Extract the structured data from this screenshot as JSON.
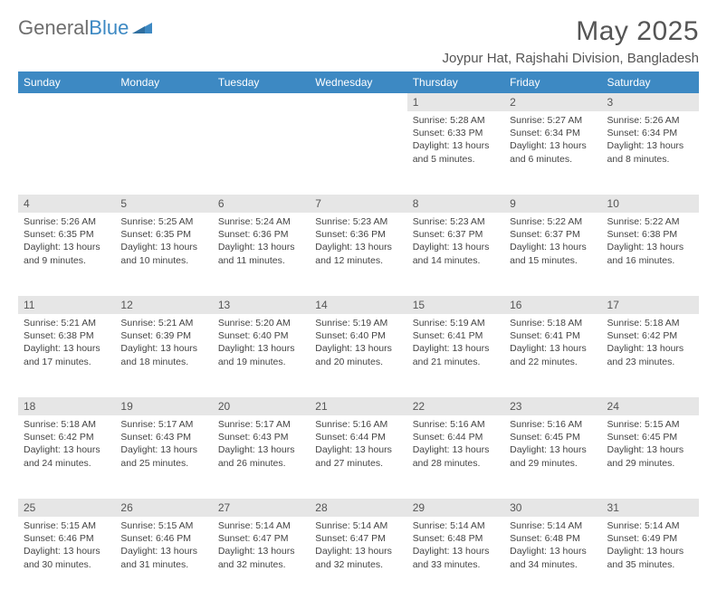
{
  "brand": {
    "part1": "General",
    "part2": "Blue"
  },
  "title": "May 2025",
  "location": "Joypur Hat, Rajshahi Division, Bangladesh",
  "colors": {
    "header_bg": "#3d89c3",
    "header_text": "#ffffff",
    "daynum_bg": "#e6e6e6",
    "text": "#444444",
    "background": "#ffffff"
  },
  "font_sizes": {
    "title": 30,
    "subtitle": 15,
    "weekday": 12,
    "daynum": 12,
    "body": 10.5
  },
  "weekdays": [
    "Sunday",
    "Monday",
    "Tuesday",
    "Wednesday",
    "Thursday",
    "Friday",
    "Saturday"
  ],
  "weeks": [
    [
      null,
      null,
      null,
      null,
      {
        "n": "1",
        "sunrise": "Sunrise: 5:28 AM",
        "sunset": "Sunset: 6:33 PM",
        "daylight": "Daylight: 13 hours and 5 minutes."
      },
      {
        "n": "2",
        "sunrise": "Sunrise: 5:27 AM",
        "sunset": "Sunset: 6:34 PM",
        "daylight": "Daylight: 13 hours and 6 minutes."
      },
      {
        "n": "3",
        "sunrise": "Sunrise: 5:26 AM",
        "sunset": "Sunset: 6:34 PM",
        "daylight": "Daylight: 13 hours and 8 minutes."
      }
    ],
    [
      {
        "n": "4",
        "sunrise": "Sunrise: 5:26 AM",
        "sunset": "Sunset: 6:35 PM",
        "daylight": "Daylight: 13 hours and 9 minutes."
      },
      {
        "n": "5",
        "sunrise": "Sunrise: 5:25 AM",
        "sunset": "Sunset: 6:35 PM",
        "daylight": "Daylight: 13 hours and 10 minutes."
      },
      {
        "n": "6",
        "sunrise": "Sunrise: 5:24 AM",
        "sunset": "Sunset: 6:36 PM",
        "daylight": "Daylight: 13 hours and 11 minutes."
      },
      {
        "n": "7",
        "sunrise": "Sunrise: 5:23 AM",
        "sunset": "Sunset: 6:36 PM",
        "daylight": "Daylight: 13 hours and 12 minutes."
      },
      {
        "n": "8",
        "sunrise": "Sunrise: 5:23 AM",
        "sunset": "Sunset: 6:37 PM",
        "daylight": "Daylight: 13 hours and 14 minutes."
      },
      {
        "n": "9",
        "sunrise": "Sunrise: 5:22 AM",
        "sunset": "Sunset: 6:37 PM",
        "daylight": "Daylight: 13 hours and 15 minutes."
      },
      {
        "n": "10",
        "sunrise": "Sunrise: 5:22 AM",
        "sunset": "Sunset: 6:38 PM",
        "daylight": "Daylight: 13 hours and 16 minutes."
      }
    ],
    [
      {
        "n": "11",
        "sunrise": "Sunrise: 5:21 AM",
        "sunset": "Sunset: 6:38 PM",
        "daylight": "Daylight: 13 hours and 17 minutes."
      },
      {
        "n": "12",
        "sunrise": "Sunrise: 5:21 AM",
        "sunset": "Sunset: 6:39 PM",
        "daylight": "Daylight: 13 hours and 18 minutes."
      },
      {
        "n": "13",
        "sunrise": "Sunrise: 5:20 AM",
        "sunset": "Sunset: 6:40 PM",
        "daylight": "Daylight: 13 hours and 19 minutes."
      },
      {
        "n": "14",
        "sunrise": "Sunrise: 5:19 AM",
        "sunset": "Sunset: 6:40 PM",
        "daylight": "Daylight: 13 hours and 20 minutes."
      },
      {
        "n": "15",
        "sunrise": "Sunrise: 5:19 AM",
        "sunset": "Sunset: 6:41 PM",
        "daylight": "Daylight: 13 hours and 21 minutes."
      },
      {
        "n": "16",
        "sunrise": "Sunrise: 5:18 AM",
        "sunset": "Sunset: 6:41 PM",
        "daylight": "Daylight: 13 hours and 22 minutes."
      },
      {
        "n": "17",
        "sunrise": "Sunrise: 5:18 AM",
        "sunset": "Sunset: 6:42 PM",
        "daylight": "Daylight: 13 hours and 23 minutes."
      }
    ],
    [
      {
        "n": "18",
        "sunrise": "Sunrise: 5:18 AM",
        "sunset": "Sunset: 6:42 PM",
        "daylight": "Daylight: 13 hours and 24 minutes."
      },
      {
        "n": "19",
        "sunrise": "Sunrise: 5:17 AM",
        "sunset": "Sunset: 6:43 PM",
        "daylight": "Daylight: 13 hours and 25 minutes."
      },
      {
        "n": "20",
        "sunrise": "Sunrise: 5:17 AM",
        "sunset": "Sunset: 6:43 PM",
        "daylight": "Daylight: 13 hours and 26 minutes."
      },
      {
        "n": "21",
        "sunrise": "Sunrise: 5:16 AM",
        "sunset": "Sunset: 6:44 PM",
        "daylight": "Daylight: 13 hours and 27 minutes."
      },
      {
        "n": "22",
        "sunrise": "Sunrise: 5:16 AM",
        "sunset": "Sunset: 6:44 PM",
        "daylight": "Daylight: 13 hours and 28 minutes."
      },
      {
        "n": "23",
        "sunrise": "Sunrise: 5:16 AM",
        "sunset": "Sunset: 6:45 PM",
        "daylight": "Daylight: 13 hours and 29 minutes."
      },
      {
        "n": "24",
        "sunrise": "Sunrise: 5:15 AM",
        "sunset": "Sunset: 6:45 PM",
        "daylight": "Daylight: 13 hours and 29 minutes."
      }
    ],
    [
      {
        "n": "25",
        "sunrise": "Sunrise: 5:15 AM",
        "sunset": "Sunset: 6:46 PM",
        "daylight": "Daylight: 13 hours and 30 minutes."
      },
      {
        "n": "26",
        "sunrise": "Sunrise: 5:15 AM",
        "sunset": "Sunset: 6:46 PM",
        "daylight": "Daylight: 13 hours and 31 minutes."
      },
      {
        "n": "27",
        "sunrise": "Sunrise: 5:14 AM",
        "sunset": "Sunset: 6:47 PM",
        "daylight": "Daylight: 13 hours and 32 minutes."
      },
      {
        "n": "28",
        "sunrise": "Sunrise: 5:14 AM",
        "sunset": "Sunset: 6:47 PM",
        "daylight": "Daylight: 13 hours and 32 minutes."
      },
      {
        "n": "29",
        "sunrise": "Sunrise: 5:14 AM",
        "sunset": "Sunset: 6:48 PM",
        "daylight": "Daylight: 13 hours and 33 minutes."
      },
      {
        "n": "30",
        "sunrise": "Sunrise: 5:14 AM",
        "sunset": "Sunset: 6:48 PM",
        "daylight": "Daylight: 13 hours and 34 minutes."
      },
      {
        "n": "31",
        "sunrise": "Sunrise: 5:14 AM",
        "sunset": "Sunset: 6:49 PM",
        "daylight": "Daylight: 13 hours and 35 minutes."
      }
    ]
  ]
}
